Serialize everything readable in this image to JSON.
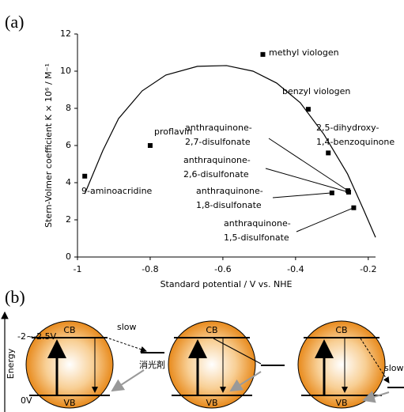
{
  "panel_labels": [
    "(a)",
    "(b)"
  ],
  "chart_data": {
    "type": "scatter",
    "xlabel": "Standard potential / V vs. NHE",
    "ylabel": "Stern-Volmer coefficient K × 10⁶ / M⁻¹",
    "xlim": [
      -1,
      -0.18
    ],
    "ylim": [
      0,
      12
    ],
    "xticks": [
      -1,
      -0.8,
      -0.6,
      -0.4,
      -0.2
    ],
    "yticks": [
      0,
      2,
      4,
      6,
      8,
      10,
      12
    ],
    "color": "#000000",
    "series": [
      {
        "x": [
          -0.98,
          -0.8,
          -0.49,
          -0.365,
          -0.31,
          -0.256,
          -0.254,
          -0.3,
          -0.24
        ],
        "values": [
          4.35,
          6.0,
          10.9,
          7.95,
          5.6,
          3.57,
          3.49,
          3.45,
          2.65
        ],
        "point_labels": [
          [
            "9-aminoacridine"
          ],
          [
            "proflavin"
          ],
          [
            "methyl viologen"
          ],
          [
            "benzyl viologen"
          ],
          [
            "2,5-dihydroxy-",
            "1,4-benzoquinone"
          ],
          [
            "anthraquinone-",
            "2,7-disulfonate"
          ],
          [
            "anthraquinone-",
            "2,6-disulfonate"
          ],
          [
            "anthraquinone-",
            "1,8-disulfonate"
          ],
          [
            "anthraquinone-",
            "1,5-disulfonate"
          ]
        ]
      }
    ],
    "curve": {
      "type": "line",
      "color": "#000000",
      "x": [
        -0.98,
        -0.93,
        -0.887,
        -0.822,
        -0.757,
        -0.67,
        -0.59,
        -0.517,
        -0.452,
        -0.387,
        -0.322,
        -0.257,
        -0.213,
        -0.18
      ],
      "values": [
        3.4,
        5.74,
        7.45,
        8.94,
        9.79,
        10.26,
        10.3,
        10.0,
        9.36,
        8.3,
        6.6,
        4.47,
        2.55,
        1.06
      ]
    }
  },
  "diagram": {
    "energy_label": "Energy",
    "levels": [
      "-2~-2.5V",
      "0V"
    ],
    "bands": [
      "CB",
      "VB"
    ],
    "slow": "slow",
    "quencher": "消光剤"
  }
}
